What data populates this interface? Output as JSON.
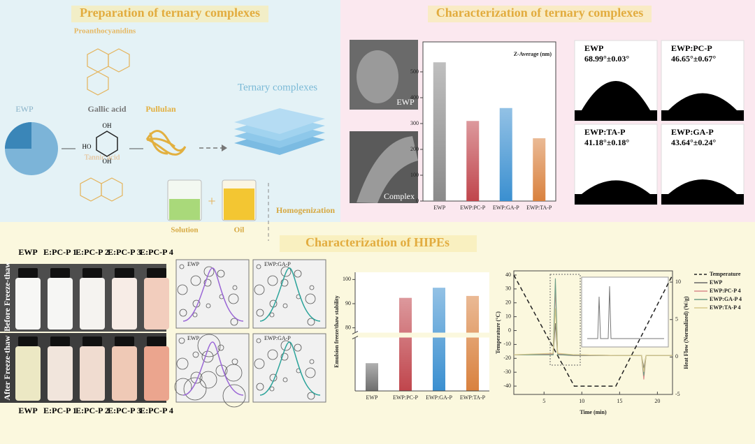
{
  "preparation": {
    "title": "Preparation of ternary complexes",
    "proanthocyanidins": "Proanthocyanidins",
    "ewp": "EWP",
    "gallic_acid": "Gallic acid",
    "gallic_acid_groups": [
      "OH",
      "HO",
      "OH"
    ],
    "pullulan": "Pullulan",
    "ternary_complexes": "Ternary complexes",
    "tannic_acid": "Tannic acid",
    "solution": "Solution",
    "oil": "Oil",
    "homogenization": "Homogenization"
  },
  "ternary": {
    "title": "Characterization of ternary complexes",
    "sem_labels": [
      "EWP",
      "Complex"
    ],
    "contact_angles": [
      {
        "name": "EWP",
        "angle": "68.99°±0.03°"
      },
      {
        "name": "EWP:PC-P",
        "angle": "46.65°±0.67°"
      },
      {
        "name": "EWP:TA-P",
        "angle": "41.18°±0.18°"
      },
      {
        "name": "EWP:GA-P",
        "angle": "43.64°±0.24°"
      }
    ]
  },
  "hipes": {
    "title": "Characterization of HIPEs",
    "samples_top": [
      "EWP",
      "E:PC-P 1",
      "E:PC-P 2",
      "E:PC-P 3",
      "E:PC-P 4"
    ],
    "samples_bottom": [
      "EWP",
      "E:PC-P 1",
      "E:PC-P 2",
      "E:PC-P 3",
      "E:PC-P 4"
    ],
    "conditions": [
      "Before Freeze-thaw",
      "After Freeze-thaw"
    ],
    "micrographs": [
      "EWP",
      "EWP:GA-P",
      "EWP",
      "EWP:GA-P"
    ]
  },
  "chart_data": [
    {
      "type": "bar",
      "legend": "Z-Average (nm)",
      "categories": [
        "EWP",
        "EWP:PC-P",
        "EWP:GA-P",
        "EWP:TA-P"
      ],
      "values": [
        537,
        310,
        360,
        243
      ],
      "colors": [
        "#8a8a8a",
        "#c0454c",
        "#3a8fd0",
        "#d9813e"
      ],
      "ylim": [
        0,
        616
      ],
      "yticks": [
        0,
        100,
        200,
        300,
        400,
        500
      ]
    },
    {
      "type": "bar",
      "ylabel": "Emulsion freeze/thaw stability",
      "categories": [
        "EWP",
        "EWP:PC-P",
        "EWP:GA-P",
        "EWP:TA-P"
      ],
      "values": [
        15.6,
        92.4,
        96.6,
        93.2
      ],
      "colors": [
        "#6e6e6e",
        "#c0454c",
        "#3a8fd0",
        "#d9813e"
      ],
      "ylim": [
        0,
        103
      ],
      "ybreak": [
        30,
        78
      ],
      "yticks": [
        80,
        90,
        100
      ]
    },
    {
      "type": "line",
      "xlabel": "Time (min)",
      "ylabel": "Temperature (°C)",
      "y2label": "Heat Flow (Normalized) (W/g)",
      "x": [
        1,
        6.2,
        6.5,
        6.8,
        9,
        14.5,
        17.9,
        18.2,
        18.5,
        22
      ],
      "xlim": [
        1,
        22
      ],
      "xticks": [
        5,
        10,
        15,
        20
      ],
      "ylim": [
        -46,
        43
      ],
      "yticks": [
        -40,
        -30,
        -20,
        -10,
        0,
        10,
        20,
        30,
        40
      ],
      "y2lim": [
        -5,
        11.5
      ],
      "y2ticks": [
        -5,
        0,
        5,
        10
      ],
      "series": [
        {
          "name": "Temperature",
          "color": "#222222",
          "dashed": true,
          "values": [
            40,
            -12,
            -15,
            -18,
            -40,
            -40,
            -3.7,
            -0.5,
            2.7,
            40
          ]
        },
        {
          "name": "EWP",
          "color": "#666666",
          "axis": "y2",
          "values": [
            0.3,
            0.3,
            4.5,
            0.3,
            0.2,
            0.2,
            0.2,
            -1.5,
            0.2,
            0.2
          ]
        },
        {
          "name": "EWP:PC-P 4",
          "color": "#d98b8b",
          "axis": "y2",
          "values": [
            0.3,
            0.4,
            9,
            0.4,
            0.3,
            0.2,
            0.2,
            -3,
            0.2,
            0.2
          ]
        },
        {
          "name": "EWP:GA-P 4",
          "color": "#6f9e86",
          "axis": "y2",
          "values": [
            0.3,
            0.3,
            10.5,
            0.3,
            0.3,
            0.2,
            0.2,
            -2.5,
            0.2,
            0.2
          ]
        },
        {
          "name": "EWP:TA-P 4",
          "color": "#d8c98a",
          "axis": "y2",
          "values": [
            0.3,
            0.5,
            6.5,
            0.5,
            0.3,
            0.2,
            0.2,
            -2,
            0.2,
            0.2
          ]
        }
      ]
    }
  ]
}
